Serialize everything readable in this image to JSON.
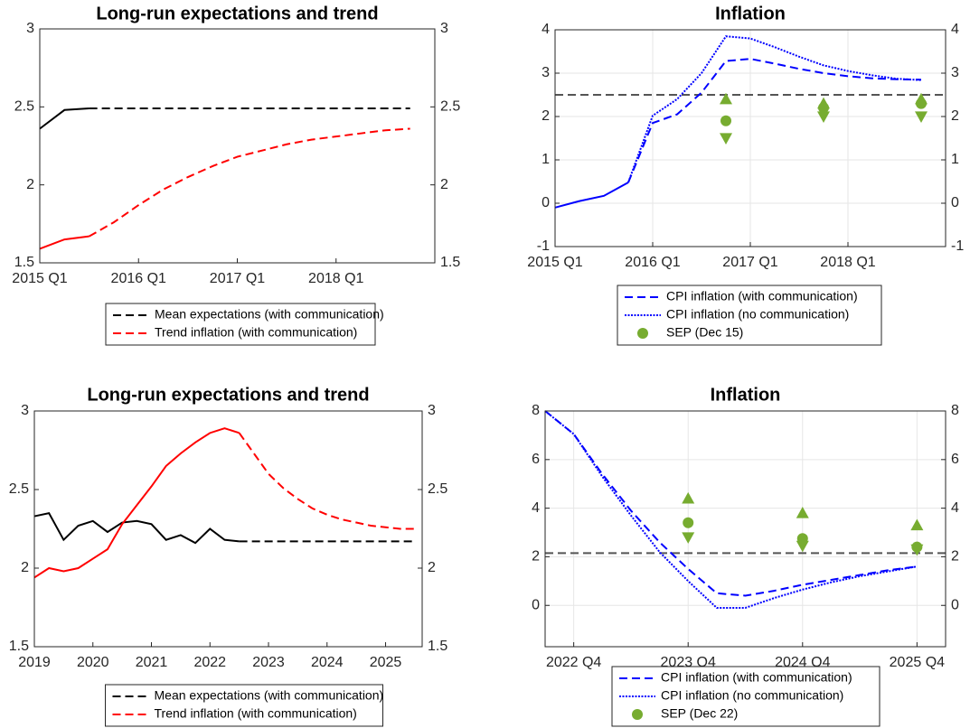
{
  "chart_data": [
    {
      "type": "line",
      "title": "Long-run expectations and trend",
      "x": [
        2015.0,
        2015.25,
        2015.5,
        2015.75,
        2016.0,
        2016.25,
        2016.5,
        2016.75,
        2017.0,
        2017.25,
        2017.5,
        2017.75,
        2018.0,
        2018.25,
        2018.5,
        2018.75
      ],
      "xlim": [
        2015,
        2019
      ],
      "xticks": [
        {
          "value": 2015,
          "label": "2015 Q1"
        },
        {
          "value": 2016,
          "label": "2016 Q1"
        },
        {
          "value": 2017,
          "label": "2017 Q1"
        },
        {
          "value": 2018,
          "label": "2018 Q1"
        }
      ],
      "ylim": [
        1.5,
        3
      ],
      "yticks": [
        1.5,
        2,
        2.5,
        3
      ],
      "mirror_yaxis": true,
      "grid": false,
      "series": [
        {
          "color": "#000000",
          "style": "solid",
          "values": [
            2.36,
            2.48,
            2.49,
            null,
            null,
            null,
            null,
            null,
            null,
            null,
            null,
            null,
            null,
            null,
            null,
            null
          ]
        },
        {
          "name": "Mean expectations (with communication)",
          "color": "#000000",
          "style": "dashed",
          "values": [
            null,
            null,
            2.49,
            2.49,
            2.49,
            2.49,
            2.49,
            2.49,
            2.49,
            2.49,
            2.49,
            2.49,
            2.49,
            2.49,
            2.49,
            2.49
          ]
        },
        {
          "color": "#ff0000",
          "style": "solid",
          "values": [
            1.59,
            1.65,
            1.67,
            null,
            null,
            null,
            null,
            null,
            null,
            null,
            null,
            null,
            null,
            null,
            null,
            null
          ]
        },
        {
          "name": "Trend inflation (with communication)",
          "color": "#ff0000",
          "style": "dashed",
          "values": [
            null,
            null,
            1.67,
            1.76,
            1.87,
            1.97,
            2.05,
            2.12,
            2.18,
            2.22,
            2.26,
            2.29,
            2.31,
            2.33,
            2.35,
            2.36
          ]
        }
      ]
    },
    {
      "type": "line",
      "title": "Inflation",
      "x": [
        2015.0,
        2015.25,
        2015.5,
        2015.75,
        2016.0,
        2016.25,
        2016.5,
        2016.75,
        2017.0,
        2017.25,
        2017.5,
        2017.75,
        2018.0,
        2018.25,
        2018.5,
        2018.75
      ],
      "xlim": [
        2015,
        2019
      ],
      "xticks": [
        {
          "value": 2015,
          "label": "2015 Q1"
        },
        {
          "value": 2016,
          "label": "2016 Q1"
        },
        {
          "value": 2017,
          "label": "2017 Q1"
        },
        {
          "value": 2018,
          "label": "2018 Q1"
        }
      ],
      "ylim": [
        -1,
        4
      ],
      "yticks": [
        -1,
        0,
        1,
        2,
        3,
        4
      ],
      "mirror_yaxis": true,
      "grid": true,
      "reference_line": {
        "value": 2.5,
        "color": "#555555"
      },
      "series": [
        {
          "color": "#0000ff",
          "style": "solid",
          "values": [
            -0.1,
            0.05,
            0.17,
            0.48,
            null,
            null,
            null,
            null,
            null,
            null,
            null,
            null,
            null,
            null,
            null,
            null
          ]
        },
        {
          "name": "CPI inflation (with communication)",
          "color": "#0000ff",
          "style": "dashed",
          "values": [
            null,
            null,
            null,
            0.48,
            1.85,
            2.05,
            2.55,
            3.28,
            3.33,
            3.22,
            3.1,
            3.0,
            2.93,
            2.88,
            2.86,
            2.85
          ]
        },
        {
          "name": "CPI inflation (no communication)",
          "color": "#0000ff",
          "style": "dotted",
          "values": [
            null,
            null,
            null,
            0.48,
            2.02,
            2.4,
            3.0,
            3.85,
            3.8,
            3.6,
            3.38,
            3.18,
            3.05,
            2.95,
            2.87,
            2.84
          ]
        },
        {
          "name": "SEP (Dec 15)",
          "color": "#77ac30",
          "style": "marker",
          "marker": "circle",
          "values": [
            null,
            null,
            null,
            null,
            null,
            null,
            null,
            1.9,
            null,
            null,
            null,
            2.2,
            null,
            null,
            null,
            2.3
          ]
        },
        {
          "color": "#77ac30",
          "style": "marker",
          "marker": "triangle-up",
          "values": [
            null,
            null,
            null,
            null,
            null,
            null,
            null,
            2.4,
            null,
            null,
            null,
            2.3,
            null,
            null,
            null,
            2.4
          ]
        },
        {
          "color": "#77ac30",
          "style": "marker",
          "marker": "triangle-down",
          "values": [
            null,
            null,
            null,
            null,
            null,
            null,
            null,
            1.5,
            null,
            null,
            null,
            2.0,
            null,
            null,
            null,
            2.0
          ]
        }
      ]
    },
    {
      "type": "line",
      "title": "Long-run expectations and trend",
      "x": [
        2019.0,
        2019.25,
        2019.5,
        2019.75,
        2020.0,
        2020.25,
        2020.5,
        2020.75,
        2021.0,
        2021.25,
        2021.5,
        2021.75,
        2022.0,
        2022.25,
        2022.5,
        2022.75,
        2023.0,
        2023.25,
        2023.5,
        2023.75,
        2024.0,
        2024.25,
        2024.5,
        2024.75,
        2025.0,
        2025.25,
        2025.5
      ],
      "xlim": [
        2019,
        2025.625
      ],
      "xticks": [
        2019,
        2020,
        2021,
        2022,
        2023,
        2024,
        2025
      ],
      "ylim": [
        1.5,
        3
      ],
      "yticks": [
        1.5,
        2,
        2.5,
        3
      ],
      "mirror_yaxis": true,
      "grid": false,
      "series": [
        {
          "color": "#000000",
          "style": "solid",
          "values": [
            2.33,
            2.35,
            2.18,
            2.27,
            2.3,
            2.23,
            2.29,
            2.3,
            2.28,
            2.18,
            2.21,
            2.16,
            2.25,
            2.18,
            2.17,
            null,
            null,
            null,
            null,
            null,
            null,
            null,
            null,
            null,
            null,
            null,
            null
          ]
        },
        {
          "name": "Mean expectations (with communication)",
          "color": "#000000",
          "style": "dashed",
          "values": [
            null,
            null,
            null,
            null,
            null,
            null,
            null,
            null,
            null,
            null,
            null,
            null,
            null,
            null,
            2.17,
            2.17,
            2.17,
            2.17,
            2.17,
            2.17,
            2.17,
            2.17,
            2.17,
            2.17,
            2.17,
            2.17,
            2.17
          ]
        },
        {
          "color": "#ff0000",
          "style": "solid",
          "values": [
            1.94,
            2.0,
            1.98,
            2.0,
            2.06,
            2.12,
            2.28,
            2.4,
            2.52,
            2.65,
            2.73,
            2.8,
            2.86,
            2.89,
            2.86,
            null,
            null,
            null,
            null,
            null,
            null,
            null,
            null,
            null,
            null,
            null,
            null
          ]
        },
        {
          "name": "Trend inflation (with communication)",
          "color": "#ff0000",
          "style": "dashed",
          "values": [
            null,
            null,
            null,
            null,
            null,
            null,
            null,
            null,
            null,
            null,
            null,
            null,
            null,
            null,
            2.86,
            2.73,
            2.6,
            2.51,
            2.44,
            2.38,
            2.34,
            2.31,
            2.29,
            2.27,
            2.26,
            2.25,
            2.25
          ]
        }
      ]
    },
    {
      "type": "line",
      "title": "Inflation",
      "x": [
        2022.5,
        2022.75,
        2023.0,
        2023.25,
        2023.5,
        2023.75,
        2024.0,
        2024.25,
        2024.5,
        2024.75,
        2025.0,
        2025.25,
        2025.5,
        2025.75
      ],
      "xlim": [
        2022.5,
        2026
      ],
      "xticks": [
        {
          "value": 2022.75,
          "label": "2022 Q4"
        },
        {
          "value": 2023.75,
          "label": "2023 Q4"
        },
        {
          "value": 2024.75,
          "label": "2024 Q4"
        },
        {
          "value": 2025.75,
          "label": "2025 Q4"
        }
      ],
      "ylim": [
        -1.7,
        8
      ],
      "yticks": [
        0,
        2,
        4,
        6,
        8
      ],
      "mirror_yaxis": true,
      "grid": true,
      "reference_line": {
        "value": 2.15,
        "color": "#555555"
      },
      "series": [
        {
          "name": "CPI inflation (with communication)",
          "color": "#0000ff",
          "style": "dashed",
          "values": [
            8.0,
            7.05,
            5.4,
            3.9,
            2.6,
            1.5,
            0.5,
            0.4,
            0.6,
            0.85,
            1.05,
            1.25,
            1.45,
            1.6
          ]
        },
        {
          "name": "CPI inflation (no communication)",
          "color": "#0000ff",
          "style": "dotted",
          "values": [
            8.0,
            7.05,
            5.3,
            3.7,
            2.2,
            1.0,
            -0.1,
            -0.1,
            0.3,
            0.65,
            0.95,
            1.2,
            1.4,
            1.6
          ]
        },
        {
          "name": "SEP (Dec 22)",
          "color": "#77ac30",
          "style": "marker",
          "marker": "circle",
          "values": [
            null,
            null,
            null,
            null,
            null,
            3.4,
            null,
            null,
            null,
            2.75,
            null,
            null,
            null,
            2.4
          ]
        },
        {
          "color": "#77ac30",
          "style": "marker",
          "marker": "triangle-up",
          "values": [
            null,
            null,
            null,
            null,
            null,
            4.4,
            null,
            null,
            null,
            3.8,
            null,
            null,
            null,
            3.3
          ]
        },
        {
          "color": "#77ac30",
          "style": "marker",
          "marker": "triangle-down",
          "values": [
            null,
            null,
            null,
            null,
            null,
            2.8,
            null,
            null,
            null,
            2.45,
            null,
            null,
            null,
            2.3
          ]
        }
      ]
    }
  ]
}
